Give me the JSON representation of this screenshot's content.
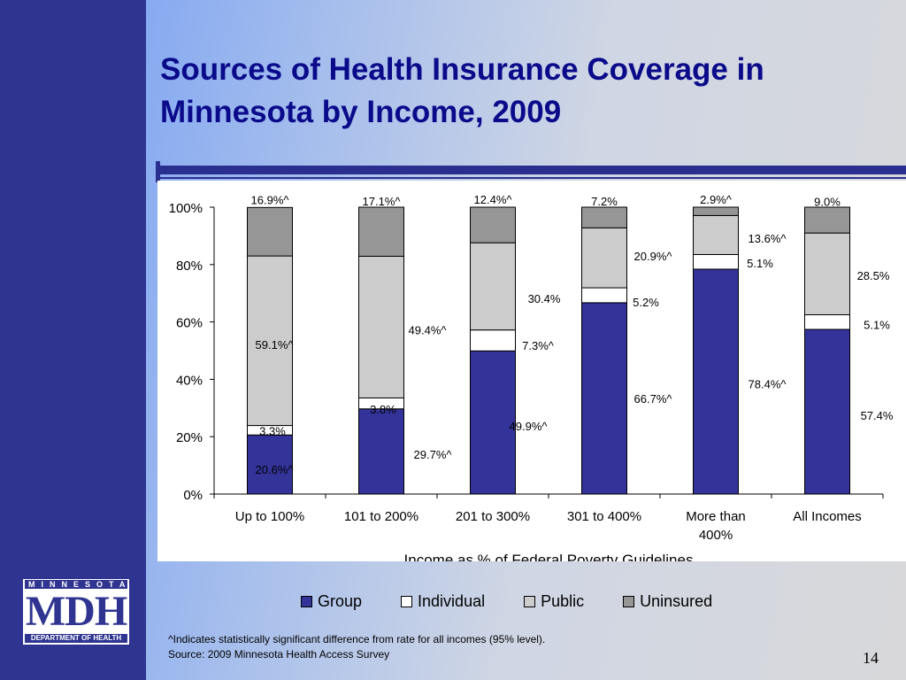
{
  "slide": {
    "title": "Sources of Health Insurance Coverage in Minnesota by Income, 2009",
    "footnote_line1": "^Indicates statistically significant difference from rate for all incomes (95% level).",
    "footnote_line2": "Source: 2009 Minnesota Health Access Survey",
    "page_number": "14",
    "logo": {
      "top": "MINNESOTA",
      "main": "MDH",
      "bottom": "DEPARTMENT OF HEALTH"
    }
  },
  "chart_data": {
    "type": "bar",
    "stacked": true,
    "xlabel": "Income as % of Federal Poverty Guidelines",
    "ylabel": "",
    "ylim": [
      0,
      100
    ],
    "yticks": [
      "0%",
      "20%",
      "40%",
      "60%",
      "80%",
      "100%"
    ],
    "categories": [
      [
        "Up to 100%"
      ],
      [
        "101 to 200%"
      ],
      [
        "201 to 300%"
      ],
      [
        "301 to 400%"
      ],
      [
        "More than",
        "400%"
      ],
      [
        "All Incomes"
      ]
    ],
    "series": [
      {
        "name": "Group",
        "color": "#333399",
        "values": [
          20.6,
          29.7,
          49.9,
          66.7,
          78.4,
          57.4
        ],
        "labels": [
          "20.6%^",
          "29.7%^",
          "49.9%^",
          "66.7%^",
          "78.4%^",
          "57.4%"
        ]
      },
      {
        "name": "Individual",
        "color": "#ffffff",
        "values": [
          3.3,
          3.8,
          7.3,
          5.2,
          5.1,
          5.1
        ],
        "labels": [
          "3.3%",
          "3.8%",
          "7.3%^",
          "5.2%",
          "5.1%",
          "5.1%"
        ]
      },
      {
        "name": "Public",
        "color": "#cccccc",
        "values": [
          59.1,
          49.4,
          30.4,
          20.9,
          13.6,
          28.5
        ],
        "labels": [
          "59.1%^",
          "49.4%^",
          "30.4%",
          "20.9%^",
          "13.6%^",
          "28.5%"
        ]
      },
      {
        "name": "Uninsured",
        "color": "#969696",
        "values": [
          16.9,
          17.1,
          12.4,
          7.2,
          2.9,
          9.0
        ],
        "labels": [
          "16.9%^",
          "17.1%^",
          "12.4%^",
          "7.2%",
          "2.9%^",
          "9.0%"
        ]
      }
    ],
    "legend_position": "bottom",
    "grid": false
  }
}
